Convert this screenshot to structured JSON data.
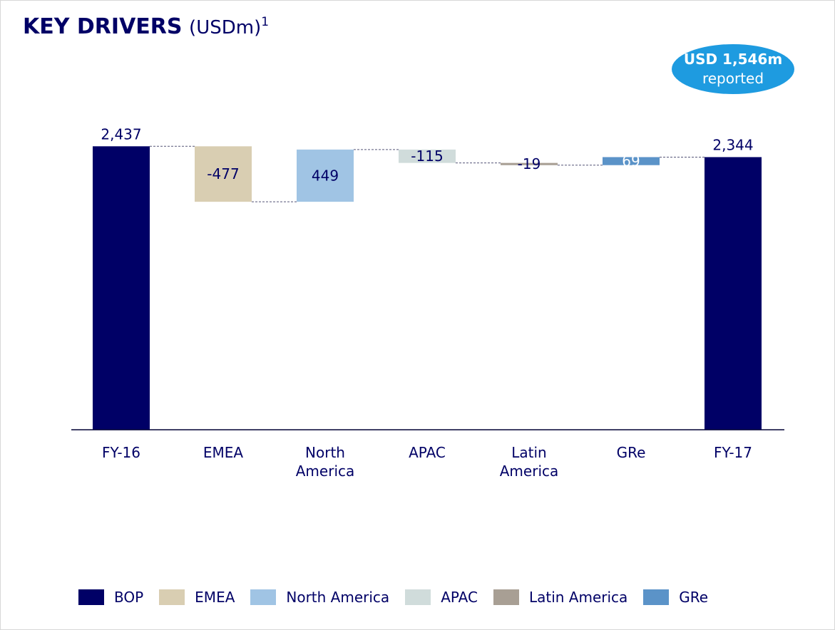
{
  "chart_data": {
    "type": "waterfall",
    "title": "KEY DRIVERS",
    "title_unit": "(USDm)",
    "title_footnote": "1",
    "callout": {
      "value": "USD 1,546m",
      "text": "reported"
    },
    "categories": [
      "FY-16",
      "EMEA",
      "North America",
      "APAC",
      "Latin America",
      "GRe",
      "FY-17"
    ],
    "values": [
      2437,
      -477,
      449,
      -115,
      -19,
      69,
      2344
    ],
    "value_labels": [
      "2,437",
      "-477",
      "449",
      "-115",
      "-19",
      "69",
      "2,344"
    ],
    "measure": [
      "absolute",
      "relative",
      "relative",
      "relative",
      "relative",
      "relative",
      "absolute"
    ],
    "colors": [
      "#000066",
      "#d9ceb2",
      "#a0c4e4",
      "#d0dcdb",
      "#a89f94",
      "#5b93c8",
      "#000066"
    ],
    "ylim": [
      0,
      2500
    ],
    "legend": [
      {
        "name": "BOP",
        "color": "#000066"
      },
      {
        "name": "EMEA",
        "color": "#d9ceb2"
      },
      {
        "name": "North America",
        "color": "#a0c4e4"
      },
      {
        "name": "APAC",
        "color": "#d0dcdb"
      },
      {
        "name": "Latin America",
        "color": "#a89f94"
      },
      {
        "name": "GRe",
        "color": "#5b93c8"
      }
    ]
  }
}
